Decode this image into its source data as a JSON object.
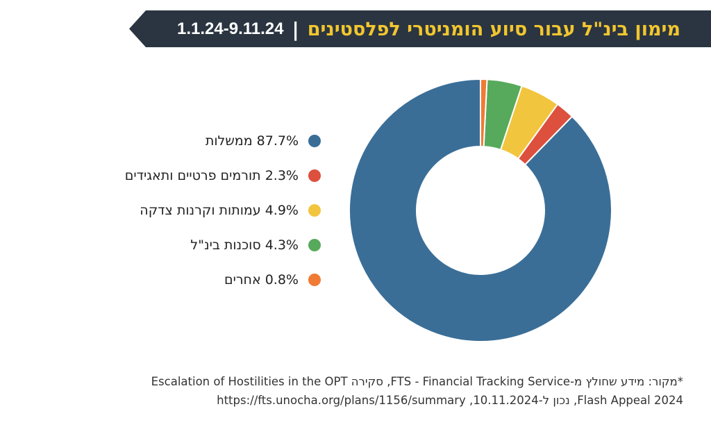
{
  "header": {
    "title": "מימון בינ\"ל עבור סיוע הומניטרי לפלסטינים",
    "separator": "|",
    "date_range": "1.1.24-9.11.24",
    "background_color": "#2b3541",
    "title_color": "#f2c62f"
  },
  "chart_data": {
    "type": "pie",
    "variant": "donut",
    "title": "",
    "slices": [
      {
        "label": "ממשלות",
        "value": 87.7,
        "display": "87.7%",
        "color": "#3a6e97"
      },
      {
        "label": "תורמים פרטיים ותאגידים",
        "value": 2.3,
        "display": "2.3%",
        "color": "#dc503d"
      },
      {
        "label": "עמותות וקרנות צדקה",
        "value": 4.9,
        "display": "4.9%",
        "color": "#f2c53f"
      },
      {
        "label": "סוכנות בינ\"ל",
        "value": 4.3,
        "display": "4.3%",
        "color": "#57aa5b"
      },
      {
        "label": "אחרים",
        "value": 0.8,
        "display": "0.8%",
        "color": "#f07b34"
      }
    ],
    "legend_placement": "left",
    "start_angle": "12 o'clock",
    "direction": "counterclockwise"
  },
  "legend": [
    {
      "text": "87.7% ממשלות",
      "color": "#3a6e97"
    },
    {
      "text": "2.3% תורמים פרטיים ותאגידים",
      "color": "#dc503d"
    },
    {
      "text": "4.9% עמותות וקרנות צדקה",
      "color": "#f2c53f"
    },
    {
      "text": "4.3% סוכנות בינ\"ל",
      "color": "#57aa5b"
    },
    {
      "text": "0.8% אחרים",
      "color": "#f07b34"
    }
  ],
  "footnote": {
    "line1": "*מקור: מידע שחולץ מ-FTS - Financial Tracking Service, סקירה Escalation of Hostilities in the OPT",
    "line2": "Flash Appeal 2024, נכון ל-10.11.2024, https://fts.unocha.org/plans/1156/summary"
  }
}
